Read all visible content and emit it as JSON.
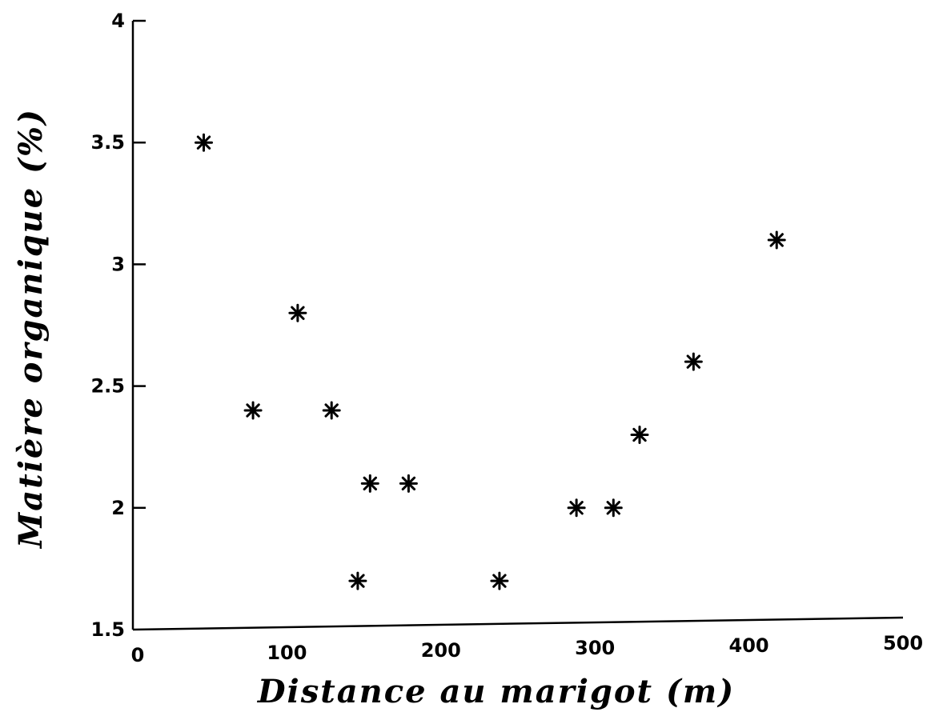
{
  "chart_data": {
    "type": "scatter",
    "title": "",
    "xlabel": "Distance au marigot (m)",
    "ylabel": "Matière organique (%)",
    "xlim": [
      0,
      500
    ],
    "ylim": [
      1.5,
      4
    ],
    "xticks": [
      0,
      100,
      200,
      300,
      400,
      500
    ],
    "yticks": [
      1.5,
      2,
      2.5,
      3,
      3.5,
      4
    ],
    "xtick_labels": [
      "0",
      "100",
      "200",
      "300",
      "400",
      "500"
    ],
    "ytick_labels": [
      "1.5",
      "2",
      "2.5",
      "3",
      "3.5",
      "4"
    ],
    "marker": "asterisk",
    "grid": false,
    "points": [
      {
        "x": 46,
        "y": 3.5
      },
      {
        "x": 78,
        "y": 2.4
      },
      {
        "x": 107,
        "y": 2.8
      },
      {
        "x": 129,
        "y": 2.4
      },
      {
        "x": 146,
        "y": 1.7
      },
      {
        "x": 154,
        "y": 2.1
      },
      {
        "x": 179,
        "y": 2.1
      },
      {
        "x": 238,
        "y": 1.7
      },
      {
        "x": 288,
        "y": 2.0
      },
      {
        "x": 312,
        "y": 2.0
      },
      {
        "x": 329,
        "y": 2.3
      },
      {
        "x": 364,
        "y": 2.6
      },
      {
        "x": 418,
        "y": 3.1
      }
    ]
  }
}
